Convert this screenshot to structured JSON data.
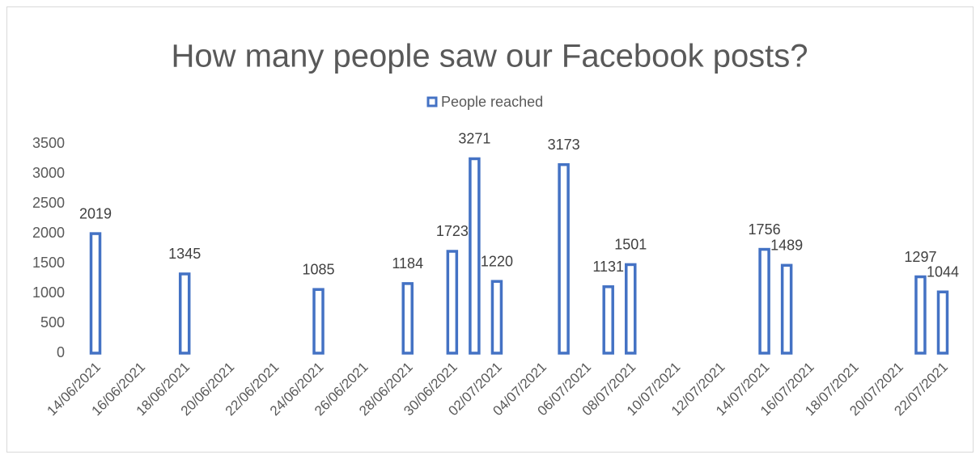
{
  "chart_data": {
    "type": "bar",
    "title": "How many people saw our Facebook posts?",
    "x": [
      "14/06/2021",
      "18/06/2021",
      "24/06/2021",
      "28/06/2021",
      "30/06/2021",
      "01/07/2021",
      "02/07/2021",
      "05/07/2021",
      "07/07/2021",
      "08/07/2021",
      "14/07/2021",
      "15/07/2021",
      "21/07/2021",
      "22/07/2021"
    ],
    "series": [
      {
        "name": "People reached",
        "color": "#4472c4",
        "values": [
          2019,
          1345,
          1085,
          1184,
          1723,
          3271,
          1220,
          3173,
          1131,
          1501,
          1756,
          1489,
          1297,
          1044
        ]
      }
    ],
    "xlim": [
      "14/06/2021",
      "22/07/2021"
    ],
    "xticks": [
      "14/06/2021",
      "16/06/2021",
      "18/06/2021",
      "20/06/2021",
      "22/06/2021",
      "24/06/2021",
      "26/06/2021",
      "28/06/2021",
      "30/06/2021",
      "02/07/2021",
      "04/07/2021",
      "06/07/2021",
      "08/07/2021",
      "10/07/2021",
      "12/07/2021",
      "14/07/2021",
      "16/07/2021",
      "18/07/2021",
      "20/07/2021",
      "22/07/2021"
    ],
    "ylim": [
      0,
      3500
    ],
    "yticks": [
      0,
      500,
      1000,
      1500,
      2000,
      2500,
      3000,
      3500
    ],
    "grid": false,
    "legend": "top"
  }
}
